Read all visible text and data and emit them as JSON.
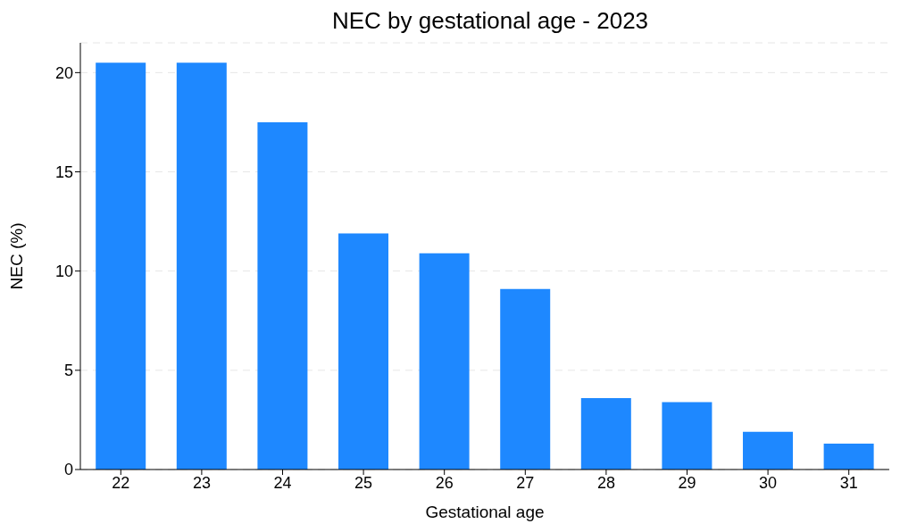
{
  "chart_data": {
    "type": "bar",
    "title": "NEC by gestational age - 2023",
    "xlabel": "Gestational age",
    "ylabel": "NEC (%)",
    "categories": [
      "22",
      "23",
      "24",
      "25",
      "26",
      "27",
      "28",
      "29",
      "30",
      "31"
    ],
    "values": [
      20.5,
      20.5,
      17.5,
      11.9,
      10.9,
      9.1,
      3.6,
      3.4,
      1.9,
      1.3
    ],
    "color": "#1e88ff",
    "ylim": [
      0,
      21.5
    ],
    "yticks": [
      0,
      5,
      10,
      15,
      20
    ],
    "grid": "y"
  }
}
